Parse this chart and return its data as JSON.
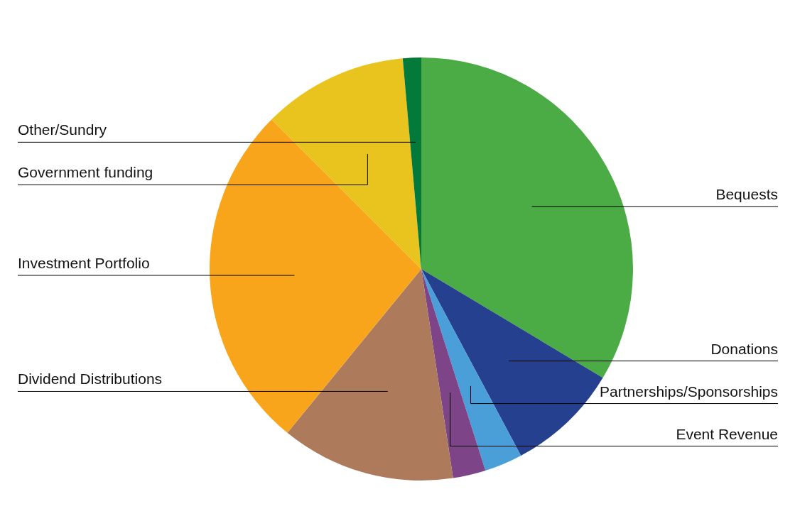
{
  "chart_data": {
    "type": "pie",
    "categories": [
      "Bequests",
      "Donations",
      "Partnerships/Sponsorships",
      "Event Revenue",
      "Dividend Distributions",
      "Investment Portfolio",
      "Government funding",
      "Other/Sundry"
    ],
    "values": [
      33.6,
      8.6,
      2.9,
      2.5,
      13.3,
      26.6,
      11.1,
      1.4
    ],
    "colors": [
      "#4bab44",
      "#25408f",
      "#4a9fd8",
      "#7d4587",
      "#ad7a5b",
      "#f8a51c",
      "#e9c41f",
      "#037a3a"
    ],
    "legend": false
  }
}
